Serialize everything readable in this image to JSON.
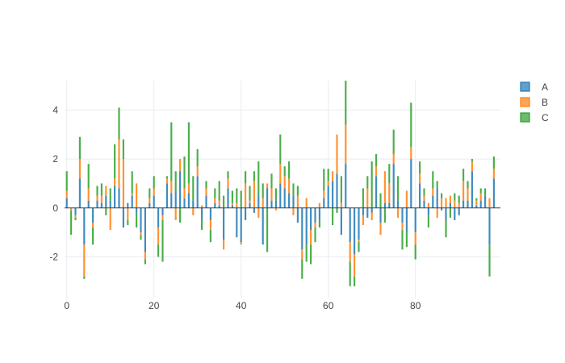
{
  "chart_data": {
    "type": "bar",
    "barmode": "relative",
    "x": [
      0,
      1,
      2,
      3,
      4,
      5,
      6,
      7,
      8,
      9,
      10,
      11,
      12,
      13,
      14,
      15,
      16,
      17,
      18,
      19,
      20,
      21,
      22,
      23,
      24,
      25,
      26,
      27,
      28,
      29,
      30,
      31,
      32,
      33,
      34,
      35,
      36,
      37,
      38,
      39,
      40,
      41,
      42,
      43,
      44,
      45,
      46,
      47,
      48,
      49,
      50,
      51,
      52,
      53,
      54,
      55,
      56,
      57,
      58,
      59,
      60,
      61,
      62,
      63,
      64,
      65,
      66,
      67,
      68,
      69,
      70,
      71,
      72,
      73,
      74,
      75,
      76,
      77,
      78,
      79,
      80,
      81,
      82,
      83,
      84,
      85,
      86,
      87,
      88,
      89,
      90,
      91,
      92,
      93,
      94,
      95,
      96,
      97,
      98,
      99
    ],
    "xlim": [
      -0.5,
      99.5
    ],
    "ylim": [
      -3.7,
      5.2
    ],
    "x_ticks": [
      0,
      20,
      40,
      60,
      80
    ],
    "y_ticks": [
      -2,
      0,
      2,
      4
    ],
    "grid": true,
    "legend_position": "top-right",
    "series": [
      {
        "name": "A",
        "color": "#1f77b4",
        "values": [
          0.4,
          0,
          -0.3,
          1.2,
          -1.5,
          0.3,
          -0.6,
          0.3,
          0.2,
          0.5,
          0.3,
          0.9,
          0.8,
          -0.8,
          0.2,
          0.5,
          -0.2,
          -1.0,
          -1.8,
          0.2,
          0.5,
          -0.8,
          -0.3,
          1.0,
          0.6,
          0.7,
          1.5,
          0.4,
          0.6,
          0.3,
          1.3,
          -0.5,
          0.5,
          -0.5,
          0.2,
          0.1,
          -1.3,
          0.8,
          0.1,
          -1.2,
          -1.4,
          -0.5,
          0.2,
          -0.2,
          0.5,
          -1.5,
          0.8,
          0.3,
          0.3,
          1.0,
          0.8,
          0.6,
          0.5,
          -0.6,
          -1.7,
          -1.5,
          -0.9,
          -0.6,
          -0.5,
          0.4,
          0.9,
          1.1,
          1.4,
          -1.1,
          1.8,
          -1.4,
          -1.9,
          -1.3,
          -0.3,
          -0.4,
          -0.2,
          1.3,
          -0.6,
          0.2,
          0.2,
          1.8,
          0.3,
          -0.6,
          -1.0,
          2.0,
          -1.0,
          1.0,
          0.3,
          -0.3,
          0.5,
          0.8,
          -0.1,
          -0.5,
          0.2,
          -0.5,
          -0.3,
          0.3,
          0.3,
          1.5,
          0.1,
          0.3,
          0.5,
          -1.5,
          1.2,
          0
        ]
      },
      {
        "name": "B",
        "color": "#ff7f0e",
        "values": [
          0.3,
          -0.1,
          -0.1,
          0.8,
          -1.3,
          0.5,
          -0.2,
          0.2,
          0.3,
          0.4,
          -0.9,
          0.3,
          2.0,
          2.0,
          -0.5,
          0.1,
          1.0,
          -0.1,
          -0.3,
          0.2,
          0.3,
          -0.7,
          -0.2,
          0.2,
          0.5,
          -0.5,
          0.5,
          0.4,
          0.4,
          -0.3,
          0.4,
          0.1,
          0.3,
          -0.4,
          0.2,
          0.2,
          -0.4,
          0.4,
          0.1,
          0.2,
          -0.1,
          1.0,
          0.1,
          1.1,
          -0.4,
          0.4,
          0.2,
          0.5,
          -0.1,
          0.8,
          0.5,
          0.6,
          -0.3,
          0.5,
          -0.4,
          0.4,
          -0.6,
          -0.2,
          0.2,
          0.3,
          0.2,
          0.4,
          1.6,
          0.2,
          1.6,
          -0.8,
          -0.9,
          -0.1,
          -0.4,
          0.8,
          -0.3,
          0.4,
          -0.5,
          1.3,
          0.8,
          0.4,
          -0.4,
          -0.3,
          0.7,
          0.5,
          -0.5,
          0.4,
          0.2,
          0.2,
          0.3,
          -0.4,
          0.4,
          0.4,
          0.3,
          0.3,
          0.2,
          0.8,
          0.5,
          0.4,
          0.2,
          0.3,
          0,
          0.4,
          0.4,
          0
        ]
      },
      {
        "name": "C",
        "color": "#2ca02c",
        "values": [
          0.8,
          -1.0,
          -0.1,
          0.9,
          -0.1,
          1.0,
          -0.7,
          0.4,
          0.5,
          -0.3,
          0.5,
          1.4,
          1.3,
          0.8,
          -0.2,
          0.9,
          -0.6,
          -0.2,
          -0.2,
          0.4,
          0.5,
          -0.5,
          -1.7,
          0.1,
          2.4,
          0.8,
          -0.6,
          1.3,
          2.5,
          1.0,
          0.7,
          -0.4,
          0.3,
          -0.5,
          0.4,
          0.8,
          0.5,
          0.3,
          0.5,
          0.6,
          0.7,
          0.5,
          0.6,
          0.4,
          1.4,
          0.6,
          -1.8,
          0.6,
          0.5,
          1.2,
          0.4,
          0.7,
          0.5,
          0.4,
          -0.8,
          -0.7,
          -0.8,
          -0.6,
          -0.3,
          0.9,
          0.5,
          -0.7,
          -0.2,
          1.1,
          1.8,
          -1.0,
          -0.4,
          -0.4,
          0.8,
          0.5,
          1.9,
          0.5,
          0.6,
          -0.6,
          0.8,
          1.0,
          1.0,
          -0.8,
          -0.6,
          1.8,
          -0.6,
          0.5,
          0.3,
          -0.5,
          0.7,
          0.3,
          0.2,
          -0.7,
          -0.4,
          0.3,
          0.3,
          0.5,
          0.3,
          0.1,
          0.1,
          0.2,
          0.3,
          -1.3,
          0.5,
          0
        ]
      }
    ]
  }
}
